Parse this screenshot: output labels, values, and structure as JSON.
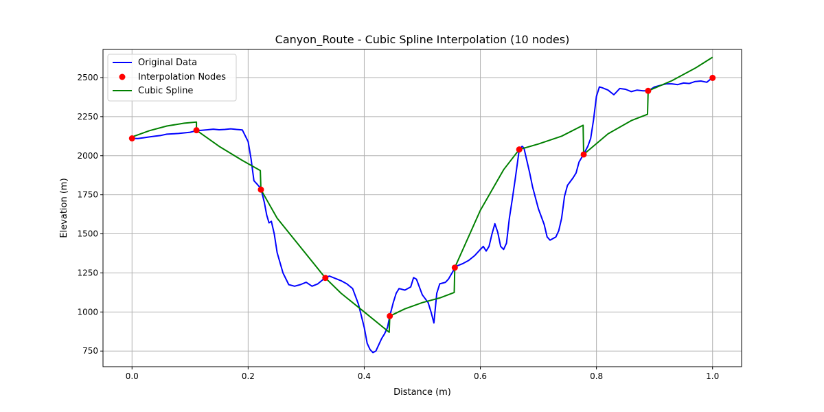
{
  "chart_data": {
    "type": "line",
    "title": "Canyon_Route - Cubic Spline Interpolation (10 nodes)",
    "xlabel": "Distance (m)",
    "ylabel": "Elevation (m)",
    "xlim": [
      -0.05,
      1.05
    ],
    "ylim": [
      650,
      2680
    ],
    "x_ticks": [
      "0.0",
      "0.2",
      "0.4",
      "0.6",
      "0.8",
      "1.0"
    ],
    "y_ticks": [
      "750",
      "1000",
      "1250",
      "1500",
      "1750",
      "2000",
      "2250",
      "2500"
    ],
    "grid": true,
    "legend_position": "upper-left",
    "legend": [
      "Original Data",
      "Interpolation Nodes",
      "Cubic Spline"
    ],
    "colors": {
      "original": "#0000ff",
      "nodes": "#ff0000",
      "spline": "#008000"
    },
    "series": [
      {
        "name": "Original Data",
        "x": [
          0.0,
          0.01,
          0.02,
          0.03,
          0.04,
          0.05,
          0.06,
          0.07,
          0.08,
          0.09,
          0.1,
          0.111,
          0.12,
          0.13,
          0.14,
          0.15,
          0.16,
          0.17,
          0.18,
          0.19,
          0.2,
          0.205,
          0.21,
          0.215,
          0.222,
          0.228,
          0.232,
          0.236,
          0.24,
          0.245,
          0.25,
          0.26,
          0.27,
          0.28,
          0.29,
          0.3,
          0.31,
          0.32,
          0.333,
          0.34,
          0.35,
          0.36,
          0.37,
          0.38,
          0.39,
          0.4,
          0.405,
          0.41,
          0.415,
          0.42,
          0.425,
          0.43,
          0.435,
          0.44,
          0.444,
          0.45,
          0.455,
          0.46,
          0.47,
          0.48,
          0.485,
          0.49,
          0.5,
          0.51,
          0.515,
          0.52,
          0.525,
          0.53,
          0.54,
          0.545,
          0.556,
          0.56,
          0.57,
          0.58,
          0.59,
          0.6,
          0.605,
          0.61,
          0.615,
          0.62,
          0.625,
          0.63,
          0.635,
          0.64,
          0.645,
          0.65,
          0.655,
          0.66,
          0.667,
          0.672,
          0.675,
          0.68,
          0.685,
          0.69,
          0.7,
          0.705,
          0.71,
          0.715,
          0.72,
          0.73,
          0.735,
          0.74,
          0.745,
          0.75,
          0.76,
          0.765,
          0.77,
          0.778,
          0.785,
          0.79,
          0.795,
          0.8,
          0.805,
          0.81,
          0.82,
          0.83,
          0.84,
          0.85,
          0.86,
          0.87,
          0.88,
          0.889,
          0.9,
          0.91,
          0.92,
          0.93,
          0.94,
          0.95,
          0.96,
          0.97,
          0.98,
          0.99,
          1.0
        ],
        "y": [
          2111,
          2110,
          2115,
          2120,
          2125,
          2130,
          2138,
          2140,
          2142,
          2146,
          2150,
          2160,
          2163,
          2166,
          2170,
          2166,
          2168,
          2172,
          2168,
          2165,
          2090,
          1980,
          1840,
          1820,
          1790,
          1700,
          1620,
          1570,
          1580,
          1500,
          1380,
          1250,
          1175,
          1165,
          1175,
          1190,
          1165,
          1180,
          1220,
          1230,
          1215,
          1200,
          1180,
          1150,
          1050,
          900,
          800,
          760,
          740,
          750,
          790,
          830,
          860,
          900,
          975,
          1060,
          1120,
          1150,
          1140,
          1160,
          1220,
          1210,
          1110,
          1060,
          1000,
          930,
          1120,
          1180,
          1190,
          1210,
          1280,
          1295,
          1310,
          1330,
          1360,
          1400,
          1420,
          1390,
          1420,
          1500,
          1565,
          1510,
          1420,
          1400,
          1440,
          1600,
          1720,
          1850,
          2040,
          2060,
          2050,
          1970,
          1890,
          1800,
          1660,
          1610,
          1560,
          1480,
          1460,
          1480,
          1520,
          1600,
          1740,
          1810,
          1860,
          1890,
          1960,
          2010,
          2060,
          2110,
          2230,
          2380,
          2440,
          2435,
          2420,
          2390,
          2430,
          2425,
          2410,
          2420,
          2415,
          2415,
          2440,
          2450,
          2460,
          2460,
          2455,
          2465,
          2462,
          2475,
          2478,
          2470,
          2500
        ]
      },
      {
        "name": "Interpolation Nodes",
        "x": [
          0.0,
          0.111,
          0.222,
          0.333,
          0.444,
          0.556,
          0.667,
          0.778,
          0.889,
          1.0
        ],
        "y": [
          2111,
          2163,
          1783,
          1218,
          974,
          1284,
          2040,
          2008,
          2415,
          2498
        ]
      },
      {
        "name": "Cubic Spline",
        "x": [
          0.0,
          0.03,
          0.06,
          0.09,
          0.111,
          0.111,
          0.15,
          0.19,
          0.221,
          0.222,
          0.25,
          0.3,
          0.333,
          0.36,
          0.4,
          0.443,
          0.444,
          0.47,
          0.5,
          0.53,
          0.555,
          0.556,
          0.6,
          0.64,
          0.667,
          0.7,
          0.74,
          0.777,
          0.778,
          0.82,
          0.86,
          0.888,
          0.889,
          0.93,
          0.97,
          1.0
        ],
        "y": [
          2120,
          2160,
          2190,
          2208,
          2215,
          2163,
          2060,
          1970,
          1905,
          1783,
          1600,
          1370,
          1218,
          1120,
          1000,
          870,
          974,
          1020,
          1060,
          1090,
          1125,
          1284,
          1650,
          1910,
          2040,
          2075,
          2125,
          2195,
          2008,
          2140,
          2225,
          2265,
          2415,
          2480,
          2560,
          2630
        ]
      }
    ]
  }
}
